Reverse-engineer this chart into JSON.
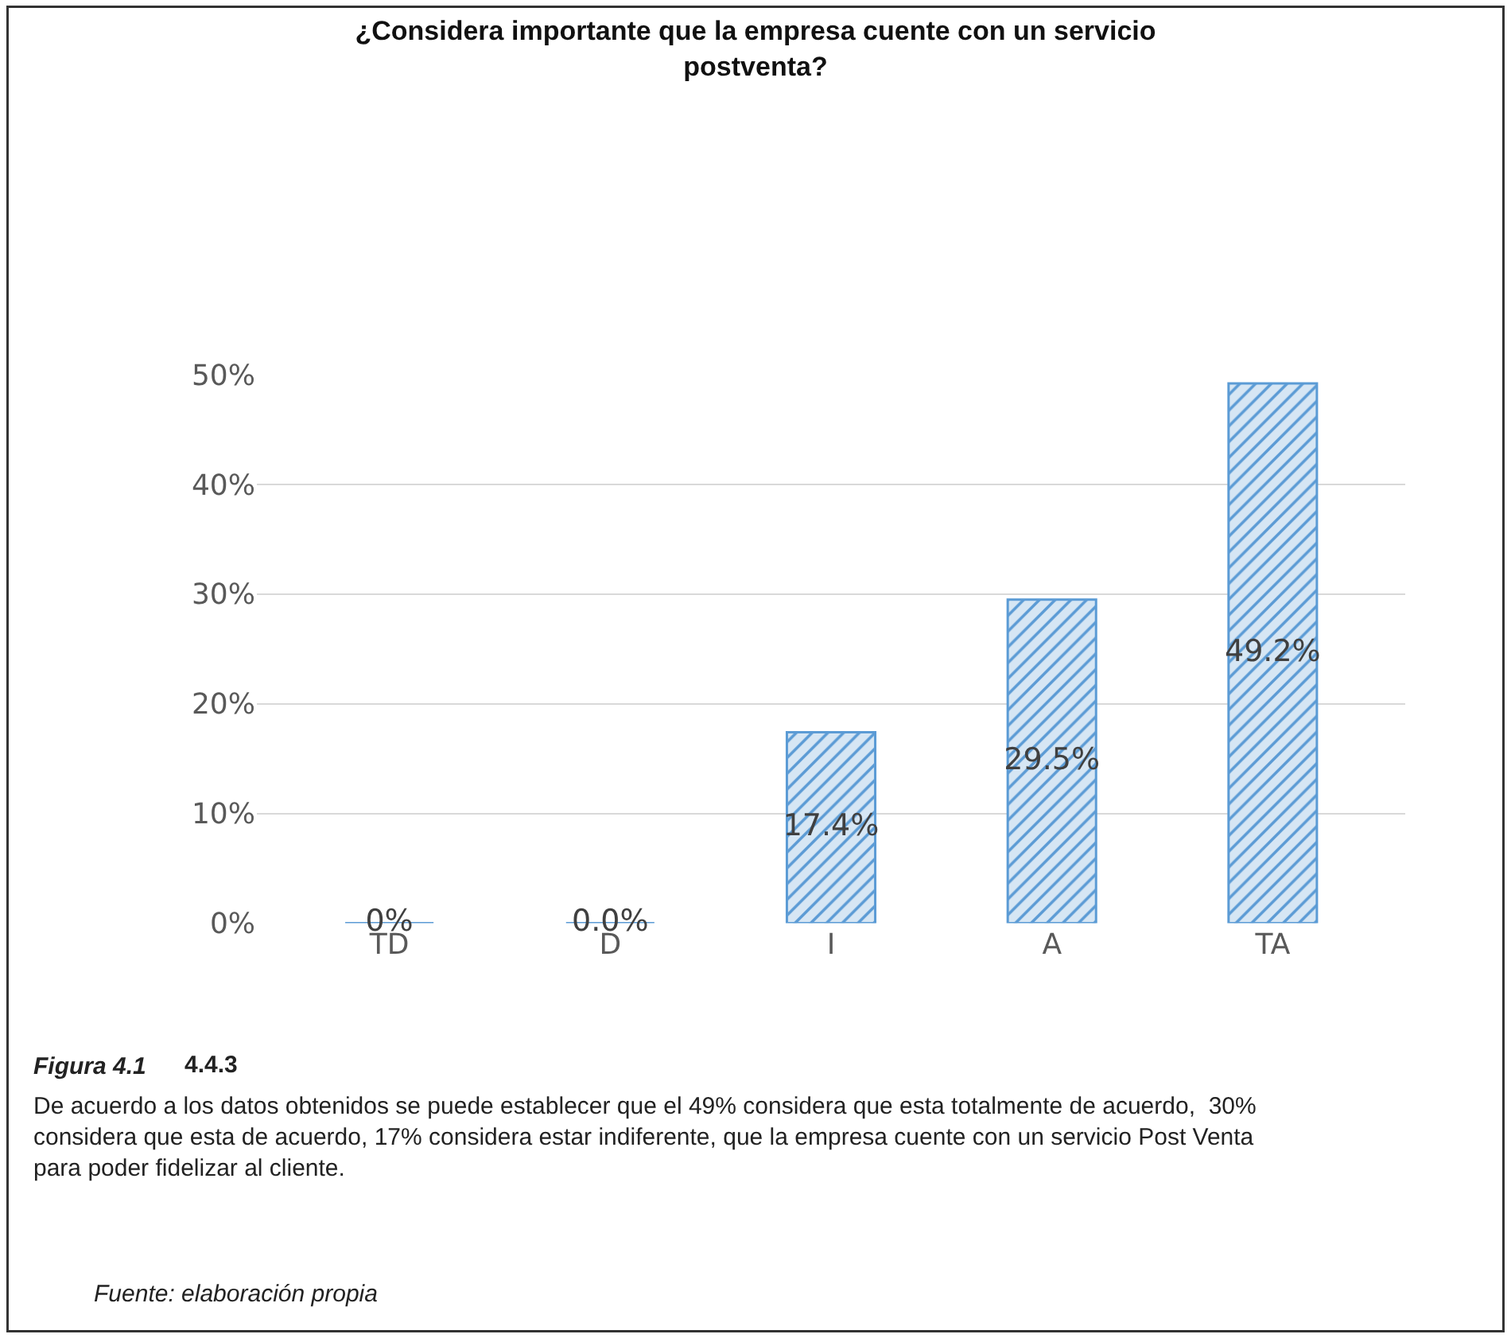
{
  "chart_data": {
    "type": "bar",
    "title": "¿Considera importante que la empresa cuente con un servicio postventa?",
    "categories": [
      "TD",
      "D",
      "I",
      "A",
      "TA"
    ],
    "values": [
      0,
      0,
      17.4,
      29.5,
      49.2
    ],
    "value_labels": [
      "0%",
      "0.0%",
      "17.4%",
      "29.5%",
      "49.2%"
    ],
    "color": "#5b9bd5",
    "ylim": [
      0,
      50
    ],
    "yticks": [
      {
        "value": 0,
        "label": "0%"
      },
      {
        "value": 10,
        "label": "10%"
      },
      {
        "value": 20,
        "label": "20%"
      },
      {
        "value": 30,
        "label": "30%"
      },
      {
        "value": 40,
        "label": "40%"
      },
      {
        "value": 50,
        "label": "50%"
      }
    ],
    "grid": "y",
    "annotations": [
      "Figura 4.1",
      "4.4.3",
      "De acuerdo a los datos obtenidos se puede establecer que el 49% considera que esta totalmente de acuerdo,  30% considera que esta de acuerdo, 17% considera estar indiferente, que la empresa cuente con un servicio Post Venta para poder fidelizar al cliente.",
      "Fuente: elaboración propia"
    ]
  }
}
